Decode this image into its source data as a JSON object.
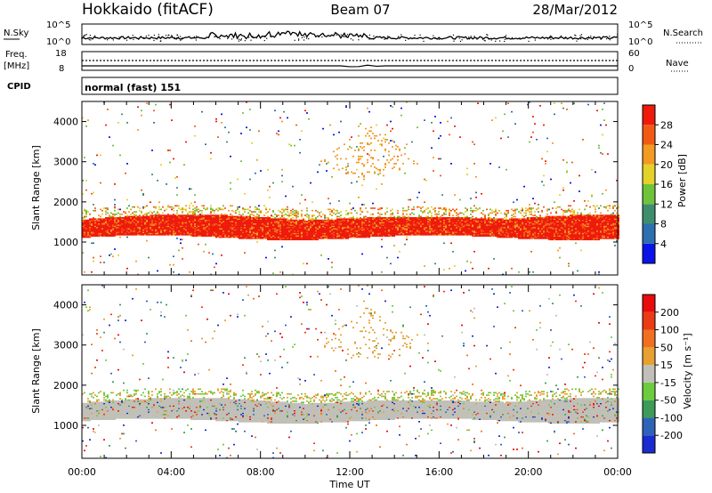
{
  "header": {
    "station": "Hokkaido (fitACF)",
    "beam": "Beam 07",
    "date": "28/Mar/2012"
  },
  "top_panels": {
    "nsky": {
      "label": "N.Sky",
      "ticks": [
        "10^5",
        "10^0"
      ]
    },
    "nsearch": {
      "label": "N.Search",
      "ticks": [
        "10^5",
        "10^0"
      ]
    },
    "freq": {
      "label_line1": "Freq.",
      "label_line2": "[MHz]",
      "ticks": [
        "18",
        "8"
      ]
    },
    "nave": {
      "label": "Nave",
      "ticks": [
        "60",
        "0"
      ]
    },
    "cpid": {
      "label": "CPID",
      "mode": "normal (fast) 151"
    }
  },
  "chart_data": [
    {
      "type": "heatmap",
      "name": "power",
      "xlabel": "Time UT",
      "ylabel": "Slant Range [km]",
      "xlim": [
        "00:00",
        "00:00"
      ],
      "x_ticks": [
        "00:00",
        "04:00",
        "08:00",
        "12:00",
        "16:00",
        "20:00",
        "00:00"
      ],
      "ylim": [
        180,
        4500
      ],
      "y_ticks": [
        1000,
        2000,
        3000,
        4000
      ],
      "colorbar": {
        "label": "Power [dB]",
        "ticks": [
          "4",
          "8",
          "12",
          "16",
          "20",
          "24",
          "28"
        ],
        "colors": [
          "#0a14e6",
          "#2d6fb0",
          "#3e8e6e",
          "#6fc33a",
          "#e4d22a",
          "#f39a22",
          "#f25a14",
          "#ee1a0c"
        ]
      },
      "features": [
        {
          "description": "main band",
          "x_hours": [
            0,
            24
          ],
          "range_km": [
            1100,
            1700
          ],
          "level_db": 28
        }
      ]
    },
    {
      "type": "heatmap",
      "name": "velocity",
      "xlabel": "Time UT",
      "ylabel": "Slant Range [km]",
      "x_ticks": [
        "00:00",
        "04:00",
        "08:00",
        "12:00",
        "16:00",
        "20:00",
        "00:00"
      ],
      "ylim": [
        180,
        4500
      ],
      "y_ticks": [
        1000,
        2000,
        3000,
        4000
      ],
      "colorbar": {
        "label": "Velocity [m s⁻¹]",
        "ticks": [
          "200",
          "100",
          "50",
          "15",
          "-15",
          "-50",
          "-100",
          "-200"
        ],
        "colors": [
          "#1a2bd0",
          "#2f63b8",
          "#3e9a58",
          "#6ccc3e",
          "#c0c0b8",
          "#e8a030",
          "#f07020",
          "#ec3a14",
          "#e80c0c"
        ]
      }
    }
  ]
}
